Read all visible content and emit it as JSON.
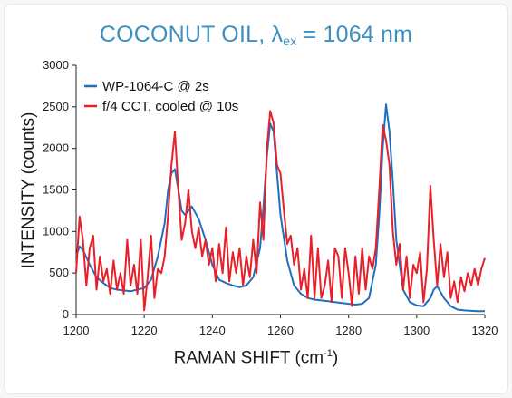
{
  "chart_data": {
    "type": "line",
    "title_parts": {
      "main": "COCONUT OIL, λ",
      "sub": "ex",
      "rest": " = 1064 nm"
    },
    "xlabel_parts": {
      "main": "RAMAN SHIFT (cm",
      "sup": "-1",
      "rest": ")"
    },
    "ylabel": "INTENSITY (counts)",
    "xlim": [
      1200,
      1320
    ],
    "ylim": [
      0,
      3000
    ],
    "xticks": [
      "1200",
      "1220",
      "1240",
      "1260",
      "1280",
      "1300",
      "1320"
    ],
    "yticks": [
      "0",
      "500",
      "1000",
      "1500",
      "2000",
      "2500",
      "3000"
    ],
    "legend_position": "top-left",
    "grid": false,
    "series": [
      {
        "name": "WP-1064-C @ 2s",
        "color": "#1f6fbf",
        "x": [
          1200,
          1201,
          1202,
          1204,
          1206,
          1208,
          1210,
          1212,
          1214,
          1216,
          1218,
          1220,
          1222,
          1224,
          1226,
          1227,
          1228,
          1229,
          1230,
          1231,
          1232,
          1233,
          1234,
          1236,
          1238,
          1240,
          1242,
          1244,
          1246,
          1248,
          1250,
          1252,
          1254,
          1255,
          1256,
          1257,
          1258,
          1259,
          1260,
          1262,
          1264,
          1266,
          1268,
          1270,
          1272,
          1274,
          1276,
          1278,
          1280,
          1282,
          1284,
          1286,
          1288,
          1289,
          1290,
          1291,
          1292,
          1293,
          1294,
          1296,
          1298,
          1300,
          1302,
          1304,
          1305,
          1306,
          1308,
          1310,
          1312,
          1314,
          1316,
          1318,
          1320
        ],
        "values": [
          700,
          820,
          780,
          600,
          450,
          380,
          320,
          300,
          290,
          280,
          300,
          320,
          420,
          700,
          1100,
          1500,
          1700,
          1750,
          1500,
          1250,
          1200,
          1250,
          1300,
          1150,
          900,
          600,
          420,
          380,
          350,
          330,
          350,
          450,
          800,
          1300,
          1900,
          2300,
          2200,
          1700,
          1200,
          650,
          350,
          250,
          200,
          180,
          170,
          160,
          150,
          140,
          130,
          120,
          130,
          200,
          600,
          1200,
          2000,
          2530,
          2200,
          1600,
          900,
          300,
          150,
          110,
          100,
          200,
          300,
          340,
          200,
          100,
          60,
          50,
          45,
          40,
          40
        ]
      },
      {
        "name": "f/4 CCT, cooled @ 10s",
        "color": "#e8202a",
        "x": [
          1200,
          1201,
          1202,
          1203,
          1204,
          1205,
          1206,
          1207,
          1208,
          1209,
          1210,
          1211,
          1212,
          1213,
          1214,
          1215,
          1216,
          1217,
          1218,
          1219,
          1220,
          1221,
          1222,
          1223,
          1224,
          1225,
          1226,
          1227,
          1228,
          1229,
          1230,
          1231,
          1232,
          1233,
          1234,
          1235,
          1236,
          1237,
          1238,
          1239,
          1240,
          1241,
          1242,
          1243,
          1244,
          1245,
          1246,
          1247,
          1248,
          1249,
          1250,
          1251,
          1252,
          1253,
          1254,
          1255,
          1256,
          1257,
          1258,
          1259,
          1260,
          1261,
          1262,
          1263,
          1264,
          1265,
          1266,
          1267,
          1268,
          1269,
          1270,
          1271,
          1272,
          1273,
          1274,
          1275,
          1276,
          1277,
          1278,
          1279,
          1280,
          1281,
          1282,
          1283,
          1284,
          1285,
          1286,
          1287,
          1288,
          1289,
          1290,
          1291,
          1292,
          1293,
          1294,
          1295,
          1296,
          1297,
          1298,
          1299,
          1300,
          1301,
          1302,
          1303,
          1304,
          1305,
          1306,
          1307,
          1308,
          1309,
          1310,
          1311,
          1312,
          1313,
          1314,
          1315,
          1316,
          1317,
          1318,
          1319,
          1320
        ],
        "values": [
          500,
          1180,
          900,
          350,
          800,
          950,
          300,
          700,
          400,
          550,
          250,
          650,
          300,
          500,
          250,
          900,
          350,
          600,
          250,
          900,
          50,
          450,
          950,
          200,
          550,
          500,
          700,
          1200,
          1800,
          2200,
          1500,
          900,
          1100,
          1500,
          1000,
          800,
          1050,
          700,
          900,
          600,
          800,
          400,
          850,
          500,
          1050,
          400,
          750,
          500,
          800,
          350,
          700,
          450,
          900,
          500,
          1350,
          900,
          2000,
          2450,
          2300,
          1800,
          1700,
          1250,
          850,
          950,
          600,
          800,
          300,
          550,
          200,
          950,
          200,
          800,
          200,
          350,
          650,
          150,
          800,
          700,
          200,
          800,
          500,
          100,
          700,
          250,
          800,
          300,
          700,
          550,
          800,
          1500,
          2280,
          2100,
          1800,
          1000,
          600,
          850,
          300,
          700,
          200,
          600,
          500,
          750,
          150,
          550,
          1550,
          900,
          350,
          850,
          450,
          750,
          200,
          400,
          150,
          450,
          280,
          500,
          350,
          550,
          350,
          550,
          680
        ]
      }
    ]
  }
}
